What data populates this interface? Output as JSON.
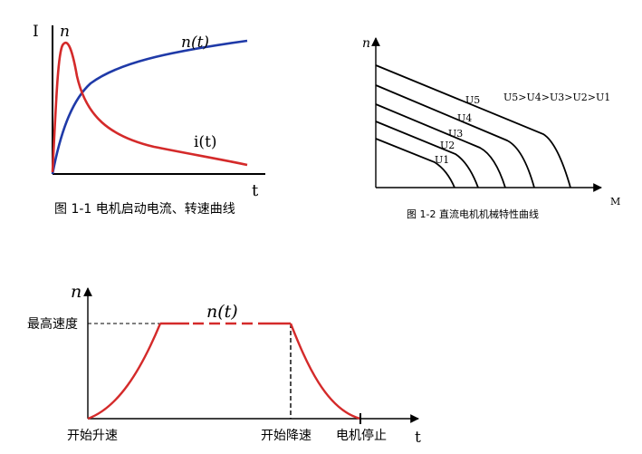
{
  "fig1": {
    "y_label_current": "I",
    "y_label_speed": "n",
    "x_label": "t",
    "speed_curve_label": "n(t)",
    "current_curve_label": "i(t)",
    "caption": "图 1-1  电机启动电流、转速曲线",
    "colors": {
      "current": "#d42a2a",
      "speed": "#1f3aa8"
    }
  },
  "fig2": {
    "y_label": "n",
    "x_label": "M",
    "legend": "U5>U4>U3>U2>U1",
    "curve_labels": [
      "U5",
      "U4",
      "U3",
      "U2",
      "U1"
    ],
    "caption": "图 1-2  直流电机机械特性曲线"
  },
  "fig3": {
    "y_label": "n",
    "x_label": "t",
    "curve_label": "n(t)",
    "max_speed_label": "最高速度",
    "start_accel_label": "开始升速",
    "start_decel_label": "开始降速",
    "stop_label": "电机停止",
    "colors": {
      "curve": "#d42a2a"
    }
  }
}
